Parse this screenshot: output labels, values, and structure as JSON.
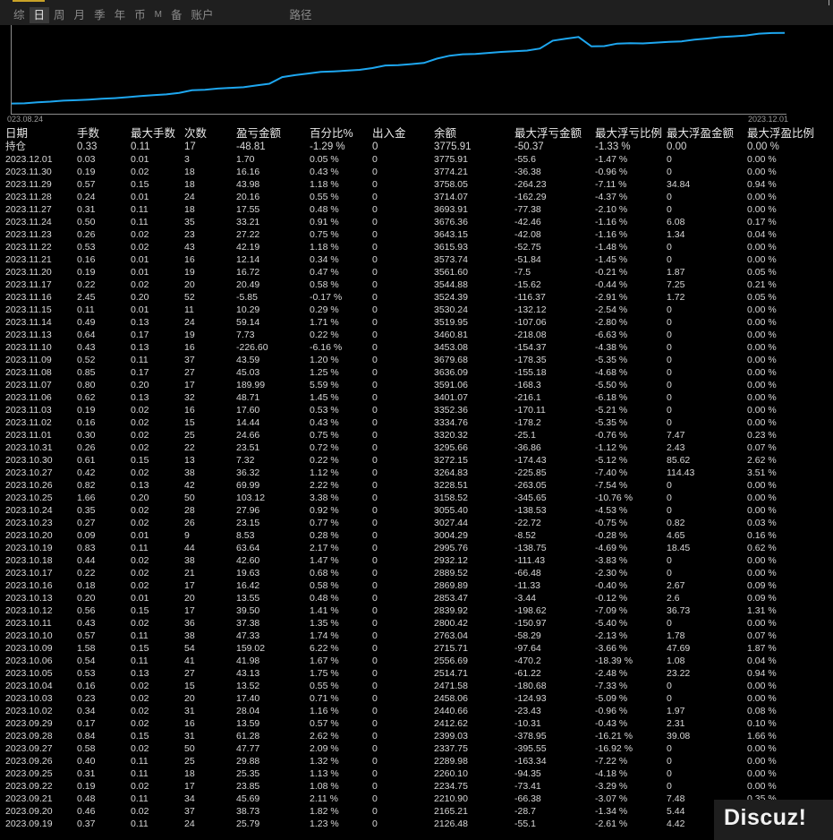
{
  "tabs": [
    "综",
    "日",
    "周",
    "月",
    "季",
    "年",
    "币",
    "M",
    "备",
    "账户",
    "路径"
  ],
  "active_tab": "日",
  "chart": {
    "start_date": "023.08.24",
    "end_date": "2023.12.01",
    "line_color": "#1ea7f0",
    "balance_curve": [
      2080,
      2085,
      2110,
      2125,
      2150,
      2160,
      2175,
      2195,
      2210,
      2234,
      2260,
      2280,
      2300,
      2337,
      2399,
      2412,
      2440,
      2458,
      2471,
      2514,
      2556,
      2715,
      2763,
      2800,
      2839,
      2853,
      2869,
      2889,
      2932,
      2995,
      3004,
      3027,
      3055,
      3158,
      3228,
      3264,
      3272,
      3295,
      3320,
      3334,
      3352,
      3401,
      3591,
      3636,
      3679,
      3453,
      3460,
      3519,
      3530,
      3524,
      3544,
      3561,
      3573,
      3615,
      3643,
      3676,
      3693,
      3714,
      3758,
      3774,
      3775
    ]
  },
  "columns": [
    "日期",
    "手数",
    "最大手数",
    "次数",
    "盈亏金额",
    "百分比%",
    "出入金",
    "余额",
    "最大浮亏金额",
    "最大浮亏比例",
    "最大浮盈金额",
    "最大浮盈比例"
  ],
  "holding": [
    "持仓",
    "0.33",
    "0.11",
    "17",
    "-48.81",
    "-1.29 %",
    "0",
    "3775.91",
    "-50.37",
    "-1.33 %",
    "0.00",
    "0.00 %"
  ],
  "rows": [
    [
      "2023.12.01",
      "0.03",
      "0.01",
      "3",
      "1.70",
      "0.05 %",
      "0",
      "3775.91",
      "-55.6",
      "-1.47 %",
      "0",
      "0.00 %"
    ],
    [
      "2023.11.30",
      "0.19",
      "0.02",
      "18",
      "16.16",
      "0.43 %",
      "0",
      "3774.21",
      "-36.38",
      "-0.96 %",
      "0",
      "0.00 %"
    ],
    [
      "2023.11.29",
      "0.57",
      "0.15",
      "18",
      "43.98",
      "1.18 %",
      "0",
      "3758.05",
      "-264.23",
      "-7.11 %",
      "34.84",
      "0.94 %"
    ],
    [
      "2023.11.28",
      "0.24",
      "0.01",
      "24",
      "20.16",
      "0.55 %",
      "0",
      "3714.07",
      "-162.29",
      "-4.37 %",
      "0",
      "0.00 %"
    ],
    [
      "2023.11.27",
      "0.31",
      "0.11",
      "18",
      "17.55",
      "0.48 %",
      "0",
      "3693.91",
      "-77.38",
      "-2.10 %",
      "0",
      "0.00 %"
    ],
    [
      "2023.11.24",
      "0.50",
      "0.11",
      "35",
      "33.21",
      "0.91 %",
      "0",
      "3676.36",
      "-42.46",
      "-1.16 %",
      "6.08",
      "0.17 %"
    ],
    [
      "2023.11.23",
      "0.26",
      "0.02",
      "23",
      "27.22",
      "0.75 %",
      "0",
      "3643.15",
      "-42.08",
      "-1.16 %",
      "1.34",
      "0.04 %"
    ],
    [
      "2023.11.22",
      "0.53",
      "0.02",
      "43",
      "42.19",
      "1.18 %",
      "0",
      "3615.93",
      "-52.75",
      "-1.48 %",
      "0",
      "0.00 %"
    ],
    [
      "2023.11.21",
      "0.16",
      "0.01",
      "16",
      "12.14",
      "0.34 %",
      "0",
      "3573.74",
      "-51.84",
      "-1.45 %",
      "0",
      "0.00 %"
    ],
    [
      "2023.11.20",
      "0.19",
      "0.01",
      "19",
      "16.72",
      "0.47 %",
      "0",
      "3561.60",
      "-7.5",
      "-0.21 %",
      "1.87",
      "0.05 %"
    ],
    [
      "2023.11.17",
      "0.22",
      "0.02",
      "20",
      "20.49",
      "0.58 %",
      "0",
      "3544.88",
      "-15.62",
      "-0.44 %",
      "7.25",
      "0.21 %"
    ],
    [
      "2023.11.16",
      "2.45",
      "0.20",
      "52",
      "-5.85",
      "-0.17 %",
      "0",
      "3524.39",
      "-116.37",
      "-2.91 %",
      "1.72",
      "0.05 %"
    ],
    [
      "2023.11.15",
      "0.11",
      "0.01",
      "11",
      "10.29",
      "0.29 %",
      "0",
      "3530.24",
      "-132.12",
      "-2.54 %",
      "0",
      "0.00 %"
    ],
    [
      "2023.11.14",
      "0.49",
      "0.13",
      "24",
      "59.14",
      "1.71 %",
      "0",
      "3519.95",
      "-107.06",
      "-2.80 %",
      "0",
      "0.00 %"
    ],
    [
      "2023.11.13",
      "0.64",
      "0.17",
      "19",
      "7.73",
      "0.22 %",
      "0",
      "3460.81",
      "-218.08",
      "-6.63 %",
      "0",
      "0.00 %"
    ],
    [
      "2023.11.10",
      "0.43",
      "0.13",
      "16",
      "-226.60",
      "-6.16 %",
      "0",
      "3453.08",
      "-154.37",
      "-4.38 %",
      "0",
      "0.00 %"
    ],
    [
      "2023.11.09",
      "0.52",
      "0.11",
      "37",
      "43.59",
      "1.20 %",
      "0",
      "3679.68",
      "-178.35",
      "-5.35 %",
      "0",
      "0.00 %"
    ],
    [
      "2023.11.08",
      "0.85",
      "0.17",
      "27",
      "45.03",
      "1.25 %",
      "0",
      "3636.09",
      "-155.18",
      "-4.68 %",
      "0",
      "0.00 %"
    ],
    [
      "2023.11.07",
      "0.80",
      "0.20",
      "17",
      "189.99",
      "5.59 %",
      "0",
      "3591.06",
      "-168.3",
      "-5.50 %",
      "0",
      "0.00 %"
    ],
    [
      "2023.11.06",
      "0.62",
      "0.13",
      "32",
      "48.71",
      "1.45 %",
      "0",
      "3401.07",
      "-216.1",
      "-6.18 %",
      "0",
      "0.00 %"
    ],
    [
      "2023.11.03",
      "0.19",
      "0.02",
      "16",
      "17.60",
      "0.53 %",
      "0",
      "3352.36",
      "-170.11",
      "-5.21 %",
      "0",
      "0.00 %"
    ],
    [
      "2023.11.02",
      "0.16",
      "0.02",
      "15",
      "14.44",
      "0.43 %",
      "0",
      "3334.76",
      "-178.2",
      "-5.35 %",
      "0",
      "0.00 %"
    ],
    [
      "2023.11.01",
      "0.30",
      "0.02",
      "25",
      "24.66",
      "0.75 %",
      "0",
      "3320.32",
      "-25.1",
      "-0.76 %",
      "7.47",
      "0.23 %"
    ],
    [
      "2023.10.31",
      "0.26",
      "0.02",
      "22",
      "23.51",
      "0.72 %",
      "0",
      "3295.66",
      "-36.86",
      "-1.12 %",
      "2.43",
      "0.07 %"
    ],
    [
      "2023.10.30",
      "0.61",
      "0.15",
      "13",
      "7.32",
      "0.22 %",
      "0",
      "3272.15",
      "-174.43",
      "-5.12 %",
      "85.62",
      "2.62 %"
    ],
    [
      "2023.10.27",
      "0.42",
      "0.02",
      "38",
      "36.32",
      "1.12 %",
      "0",
      "3264.83",
      "-225.85",
      "-7.40 %",
      "114.43",
      "3.51 %"
    ],
    [
      "2023.10.26",
      "0.82",
      "0.13",
      "42",
      "69.99",
      "2.22 %",
      "0",
      "3228.51",
      "-263.05",
      "-7.54 %",
      "0",
      "0.00 %"
    ],
    [
      "2023.10.25",
      "1.66",
      "0.20",
      "50",
      "103.12",
      "3.38 %",
      "0",
      "3158.52",
      "-345.65",
      "-10.76 %",
      "0",
      "0.00 %"
    ],
    [
      "2023.10.24",
      "0.35",
      "0.02",
      "28",
      "27.96",
      "0.92 %",
      "0",
      "3055.40",
      "-138.53",
      "-4.53 %",
      "0",
      "0.00 %"
    ],
    [
      "2023.10.23",
      "0.27",
      "0.02",
      "26",
      "23.15",
      "0.77 %",
      "0",
      "3027.44",
      "-22.72",
      "-0.75 %",
      "0.82",
      "0.03 %"
    ],
    [
      "2023.10.20",
      "0.09",
      "0.01",
      "9",
      "8.53",
      "0.28 %",
      "0",
      "3004.29",
      "-8.52",
      "-0.28 %",
      "4.65",
      "0.16 %"
    ],
    [
      "2023.10.19",
      "0.83",
      "0.11",
      "44",
      "63.64",
      "2.17 %",
      "0",
      "2995.76",
      "-138.75",
      "-4.69 %",
      "18.45",
      "0.62 %"
    ],
    [
      "2023.10.18",
      "0.44",
      "0.02",
      "38",
      "42.60",
      "1.47 %",
      "0",
      "2932.12",
      "-111.43",
      "-3.83 %",
      "0",
      "0.00 %"
    ],
    [
      "2023.10.17",
      "0.22",
      "0.02",
      "21",
      "19.63",
      "0.68 %",
      "0",
      "2889.52",
      "-66.48",
      "-2.30 %",
      "0",
      "0.00 %"
    ],
    [
      "2023.10.16",
      "0.18",
      "0.02",
      "17",
      "16.42",
      "0.58 %",
      "0",
      "2869.89",
      "-11.33",
      "-0.40 %",
      "2.67",
      "0.09 %"
    ],
    [
      "2023.10.13",
      "0.20",
      "0.01",
      "20",
      "13.55",
      "0.48 %",
      "0",
      "2853.47",
      "-3.44",
      "-0.12 %",
      "2.6",
      "0.09 %"
    ],
    [
      "2023.10.12",
      "0.56",
      "0.15",
      "17",
      "39.50",
      "1.41 %",
      "0",
      "2839.92",
      "-198.62",
      "-7.09 %",
      "36.73",
      "1.31 %"
    ],
    [
      "2023.10.11",
      "0.43",
      "0.02",
      "36",
      "37.38",
      "1.35 %",
      "0",
      "2800.42",
      "-150.97",
      "-5.40 %",
      "0",
      "0.00 %"
    ],
    [
      "2023.10.10",
      "0.57",
      "0.11",
      "38",
      "47.33",
      "1.74 %",
      "0",
      "2763.04",
      "-58.29",
      "-2.13 %",
      "1.78",
      "0.07 %"
    ],
    [
      "2023.10.09",
      "1.58",
      "0.15",
      "54",
      "159.02",
      "6.22 %",
      "0",
      "2715.71",
      "-97.64",
      "-3.66 %",
      "47.69",
      "1.87 %"
    ],
    [
      "2023.10.06",
      "0.54",
      "0.11",
      "41",
      "41.98",
      "1.67 %",
      "0",
      "2556.69",
      "-470.2",
      "-18.39 %",
      "1.08",
      "0.04 %"
    ],
    [
      "2023.10.05",
      "0.53",
      "0.13",
      "27",
      "43.13",
      "1.75 %",
      "0",
      "2514.71",
      "-61.22",
      "-2.48 %",
      "23.22",
      "0.94 %"
    ],
    [
      "2023.10.04",
      "0.16",
      "0.02",
      "15",
      "13.52",
      "0.55 %",
      "0",
      "2471.58",
      "-180.68",
      "-7.33 %",
      "0",
      "0.00 %"
    ],
    [
      "2023.10.03",
      "0.23",
      "0.02",
      "20",
      "17.40",
      "0.71 %",
      "0",
      "2458.06",
      "-124.93",
      "-5.09 %",
      "0",
      "0.00 %"
    ],
    [
      "2023.10.02",
      "0.34",
      "0.02",
      "31",
      "28.04",
      "1.16 %",
      "0",
      "2440.66",
      "-23.43",
      "-0.96 %",
      "1.97",
      "0.08 %"
    ],
    [
      "2023.09.29",
      "0.17",
      "0.02",
      "16",
      "13.59",
      "0.57 %",
      "0",
      "2412.62",
      "-10.31",
      "-0.43 %",
      "2.31",
      "0.10 %"
    ],
    [
      "2023.09.28",
      "0.84",
      "0.15",
      "31",
      "61.28",
      "2.62 %",
      "0",
      "2399.03",
      "-378.95",
      "-16.21 %",
      "39.08",
      "1.66 %"
    ],
    [
      "2023.09.27",
      "0.58",
      "0.02",
      "50",
      "47.77",
      "2.09 %",
      "0",
      "2337.75",
      "-395.55",
      "-16.92 %",
      "0",
      "0.00 %"
    ],
    [
      "2023.09.26",
      "0.40",
      "0.11",
      "25",
      "29.88",
      "1.32 %",
      "0",
      "2289.98",
      "-163.34",
      "-7.22 %",
      "0",
      "0.00 %"
    ],
    [
      "2023.09.25",
      "0.31",
      "0.11",
      "18",
      "25.35",
      "1.13 %",
      "0",
      "2260.10",
      "-94.35",
      "-4.18 %",
      "0",
      "0.00 %"
    ],
    [
      "2023.09.22",
      "0.19",
      "0.02",
      "17",
      "23.85",
      "1.08 %",
      "0",
      "2234.75",
      "-73.41",
      "-3.29 %",
      "0",
      "0.00 %"
    ],
    [
      "2023.09.21",
      "0.48",
      "0.11",
      "34",
      "45.69",
      "2.11 %",
      "0",
      "2210.90",
      "-66.38",
      "-3.07 %",
      "7.48",
      "0.35 %"
    ],
    [
      "2023.09.20",
      "0.46",
      "0.02",
      "37",
      "38.73",
      "1.82 %",
      "0",
      "2165.21",
      "-28.7",
      "-1.34 %",
      "5.44",
      "0.26 %"
    ],
    [
      "2023.09.19",
      "0.37",
      "0.11",
      "24",
      "25.79",
      "1.23 %",
      "0",
      "2126.48",
      "-55.1",
      "-2.61 %",
      "4.42",
      "0.21 %"
    ]
  ],
  "watermark": "Discuz!",
  "colors": {
    "profit": "#e0202a",
    "loss": "#35e36a",
    "neutral": "#d8d8d8",
    "curve": "#1ea7f0"
  }
}
